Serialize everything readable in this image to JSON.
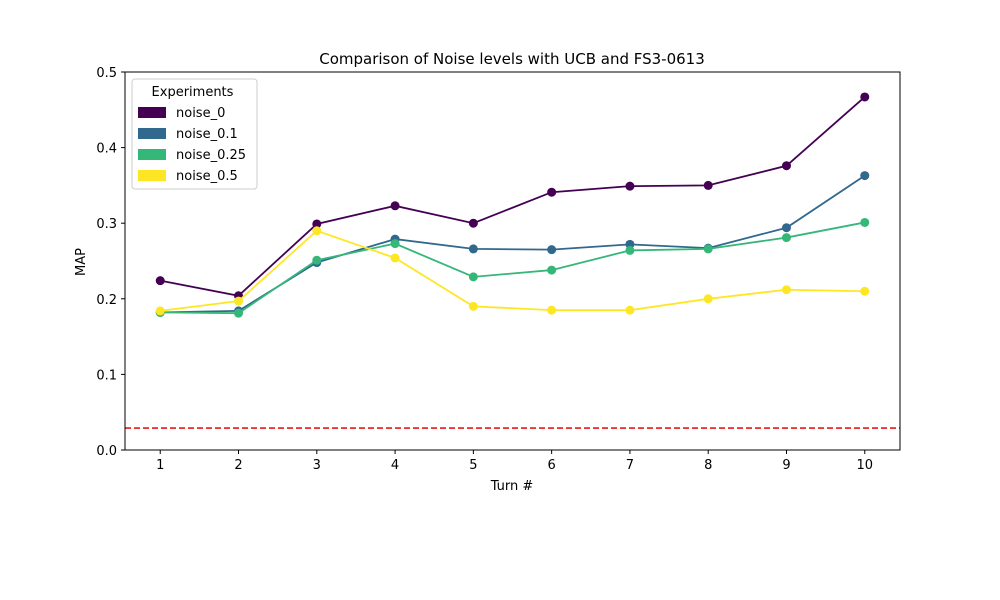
{
  "chart_data": {
    "type": "line",
    "title": "Comparison of Noise levels with UCB and FS3-0613",
    "xlabel": "Turn #",
    "ylabel": "MAP",
    "x": [
      1,
      2,
      3,
      4,
      5,
      6,
      7,
      8,
      9,
      10
    ],
    "xticks": [
      "1",
      "2",
      "3",
      "4",
      "5",
      "6",
      "7",
      "8",
      "9",
      "10"
    ],
    "ylim": [
      0.0,
      0.5
    ],
    "yticks": [
      "0.0",
      "0.1",
      "0.2",
      "0.3",
      "0.4",
      "0.5"
    ],
    "grid": false,
    "legend": {
      "title": "Experiments",
      "placement": "upper-left"
    },
    "series": [
      {
        "name": "noise_0",
        "color": "#440154",
        "values": [
          0.224,
          0.204,
          0.299,
          0.323,
          0.3,
          0.341,
          0.349,
          0.35,
          0.376,
          0.467
        ]
      },
      {
        "name": "noise_0.1",
        "color": "#31688e",
        "values": [
          0.182,
          0.184,
          0.248,
          0.279,
          0.266,
          0.265,
          0.272,
          0.267,
          0.294,
          0.363
        ]
      },
      {
        "name": "noise_0.25",
        "color": "#35b779",
        "values": [
          0.182,
          0.181,
          0.251,
          0.273,
          0.229,
          0.238,
          0.264,
          0.266,
          0.281,
          0.301
        ]
      },
      {
        "name": "noise_0.5",
        "color": "#fde725",
        "values": [
          0.184,
          0.197,
          0.29,
          0.254,
          0.19,
          0.185,
          0.185,
          0.2,
          0.212,
          0.21
        ]
      }
    ],
    "reference_line": {
      "y": 0.029,
      "color": "#e41a1c",
      "style": "dashed"
    }
  }
}
